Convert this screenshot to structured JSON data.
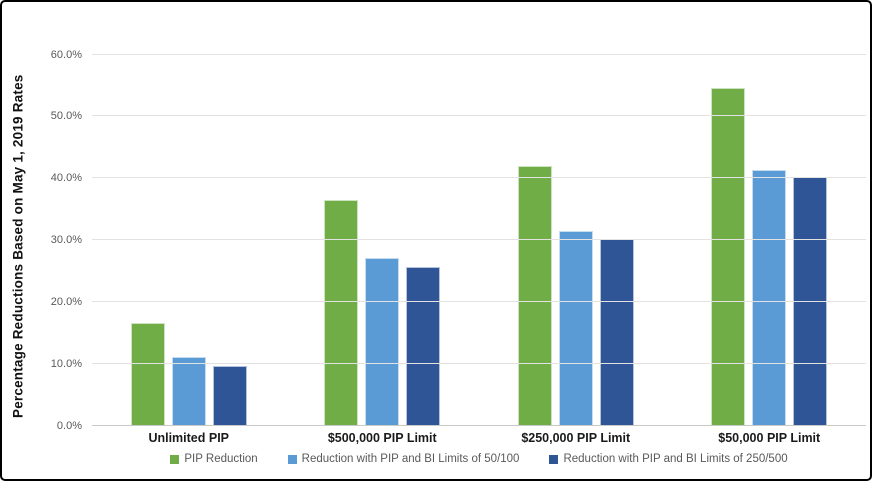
{
  "chart_data": {
    "type": "bar",
    "title": "",
    "xlabel": "",
    "ylabel": "Percentage Reductions Based on May 1, 2019 Rates",
    "categories": [
      "Unlimited PIP",
      "$500,000 PIP Limit",
      "$250,000 PIP Limit",
      "$50,000 PIP Limit"
    ],
    "series": [
      {
        "name": "PIP Reduction",
        "color": "#70AD47",
        "values": [
          16.5,
          36.4,
          41.9,
          54.4
        ]
      },
      {
        "name": "Reduction with PIP and BI Limits of 50/100",
        "color": "#5B9BD5",
        "values": [
          11.0,
          26.9,
          31.4,
          41.2
        ]
      },
      {
        "name": "Reduction with PIP and BI Limits of 250/500",
        "color": "#2F5597",
        "values": [
          9.6,
          25.5,
          30.0,
          40.0
        ]
      }
    ],
    "ylim": [
      0,
      63
    ],
    "ytick_values": [
      0,
      10,
      20,
      30,
      40,
      50,
      60
    ],
    "ytick_labels": [
      "0.0%",
      "10.0%",
      "20.0%",
      "30.0%",
      "40.0%",
      "50.0%",
      "60.0%"
    ],
    "grid": true,
    "legend_position": "bottom",
    "colors": {
      "gridline": "#e2e2e2",
      "axis_line": "#c9c9c9",
      "tick_text": "#595959",
      "category_text": "#1a1a1a",
      "legend_text": "#595959",
      "figure_border": "#000000",
      "background": "#ffffff"
    }
  }
}
